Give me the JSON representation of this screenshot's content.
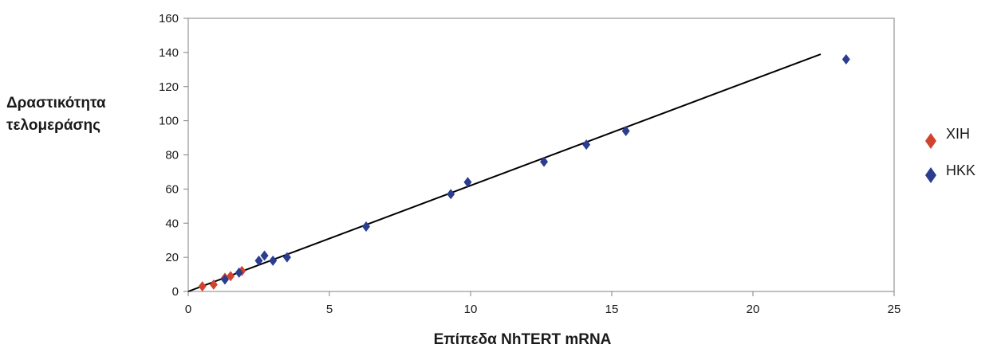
{
  "chart_data": {
    "type": "scatter",
    "xlabel": "Επίπεδα NhTERT mRNA",
    "ylabel_lines": [
      "Δραστικότητα",
      "τελομεράσης"
    ],
    "xlim": [
      0,
      25
    ],
    "ylim": [
      0,
      160
    ],
    "x_ticks": [
      0,
      5,
      10,
      15,
      20,
      25
    ],
    "y_ticks": [
      0,
      20,
      40,
      60,
      80,
      100,
      120,
      140,
      160
    ],
    "grid": false,
    "legend_position": "right",
    "series": [
      {
        "name": "XIH",
        "color": "#d0442f",
        "marker": "diamond",
        "points": [
          [
            0.5,
            3
          ],
          [
            0.9,
            4
          ],
          [
            1.3,
            8
          ],
          [
            1.5,
            9
          ],
          [
            1.9,
            12
          ]
        ]
      },
      {
        "name": "HKK",
        "color": "#2a3d8f",
        "marker": "diamond",
        "points": [
          [
            1.3,
            7
          ],
          [
            1.8,
            11
          ],
          [
            2.5,
            18
          ],
          [
            2.7,
            21
          ],
          [
            3.0,
            18
          ],
          [
            3.5,
            20
          ],
          [
            6.3,
            38
          ],
          [
            9.3,
            57
          ],
          [
            9.9,
            64
          ],
          [
            12.6,
            76
          ],
          [
            14.1,
            86
          ],
          [
            15.5,
            94
          ],
          [
            23.3,
            136
          ]
        ]
      }
    ],
    "trendline": {
      "type": "linear",
      "color": "#000000",
      "x": [
        0,
        22.4
      ],
      "y": [
        0,
        139
      ]
    }
  }
}
